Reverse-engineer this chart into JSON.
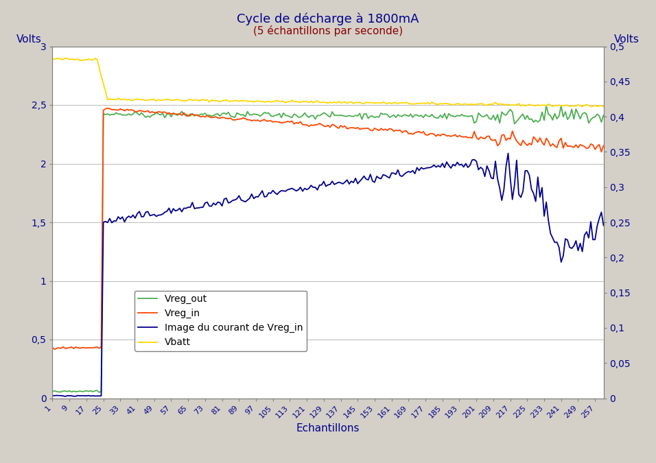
{
  "title": "Cycle de décharge à 1800mA",
  "subtitle": "(5 échantillons par seconde)",
  "xlabel": "Echantillons",
  "ylabel_left": "Volts",
  "ylabel_right": "Volts",
  "ylim_left": [
    0,
    3
  ],
  "ylim_right": [
    0,
    0.5
  ],
  "yticks_left": [
    0,
    0.5,
    1.0,
    1.5,
    2.0,
    2.5,
    3.0
  ],
  "yticks_right": [
    0,
    0.05,
    0.1,
    0.15,
    0.2,
    0.25,
    0.3,
    0.35,
    0.4,
    0.45,
    0.5
  ],
  "xlim": [
    1,
    261
  ],
  "xticks": [
    1,
    9,
    17,
    25,
    33,
    41,
    49,
    57,
    65,
    73,
    81,
    89,
    97,
    105,
    113,
    121,
    129,
    137,
    145,
    153,
    161,
    169,
    177,
    185,
    193,
    201,
    209,
    217,
    225,
    233,
    241,
    249,
    257
  ],
  "bg_color": "#d4d0c8",
  "plot_bg_color": "#ffffff",
  "grid_color": "#c0c0c0",
  "colors": {
    "vreg_out": "#4caf50",
    "vreg_in": "#ff4500",
    "current": "#00008b",
    "vbatt": "#ffd700"
  },
  "legend_labels": [
    "Vreg_out",
    "Vreg_in",
    "Image du courant de Vreg_in",
    "Vbatt"
  ],
  "title_color": "#00008b",
  "subtitle_color": "#8b0000",
  "axis_label_color": "#00008b",
  "tick_label_color": "#00008b",
  "decimal_sep": ","
}
